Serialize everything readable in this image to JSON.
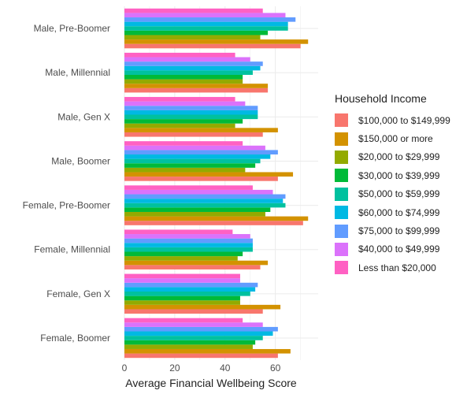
{
  "chart_data": {
    "type": "bar",
    "orientation": "horizontal",
    "xlabel": "Average Financial Wellbeing Score",
    "ylabel": "",
    "xlim": [
      0,
      77
    ],
    "x_ticks": [
      0,
      20,
      40,
      60
    ],
    "grid": true,
    "legend_position": "right",
    "legend_title": "Household Income",
    "categories": [
      "Female, Boomer",
      "Female, Gen X",
      "Female, Millennial",
      "Female, Pre-Boomer",
      "Male, Boomer",
      "Male, Gen X",
      "Male, Millennial",
      "Male, Pre-Boomer"
    ],
    "series": [
      {
        "name": "$100,000 to $149,999",
        "color": "#F8766D",
        "values": [
          61,
          55,
          54,
          71,
          61,
          55,
          57,
          70
        ]
      },
      {
        "name": "$150,000 or more",
        "color": "#D39200",
        "values": [
          66,
          62,
          57,
          73,
          67,
          61,
          57,
          73
        ]
      },
      {
        "name": "$20,000 to $29,999",
        "color": "#93AA00",
        "values": [
          51,
          46,
          45,
          56,
          48,
          44,
          47,
          54
        ]
      },
      {
        "name": "$30,000 to $39,999",
        "color": "#00BA38",
        "values": [
          52,
          46,
          47,
          58,
          52,
          47,
          47,
          57
        ]
      },
      {
        "name": "$50,000 to $59,999",
        "color": "#00C19F",
        "values": [
          55,
          50,
          51,
          64,
          54,
          53,
          51,
          65
        ]
      },
      {
        "name": "$60,000 to $74,999",
        "color": "#00B9E3",
        "values": [
          59,
          52,
          51,
          63,
          58,
          53,
          54,
          65
        ]
      },
      {
        "name": "$75,000 to $99,999",
        "color": "#619CFF",
        "values": [
          61,
          53,
          51,
          64,
          61,
          53,
          55,
          68
        ]
      },
      {
        "name": "$40,000 to $49,999",
        "color": "#DB72FB",
        "values": [
          55,
          46,
          50,
          59,
          56,
          48,
          50,
          64
        ]
      },
      {
        "name": "Less than $20,000",
        "color": "#FF61C3",
        "values": [
          47,
          46,
          43,
          51,
          47,
          44,
          44,
          55
        ]
      }
    ]
  }
}
